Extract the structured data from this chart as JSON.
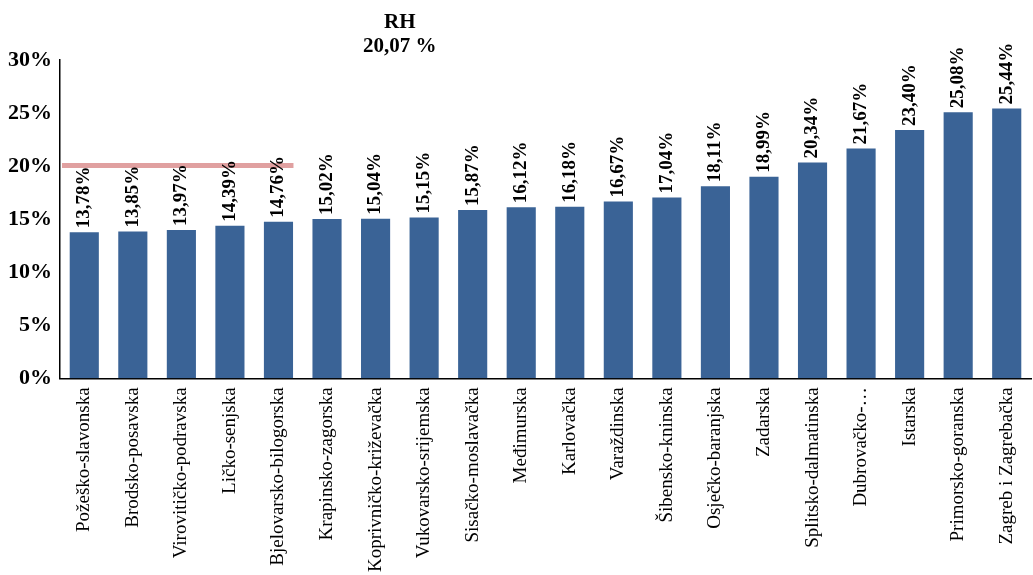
{
  "chart_data": {
    "type": "bar",
    "categories": [
      "Požeško-slavonska",
      "Brodsko-posavska",
      "Virovitičko-podravska",
      "Ličko-senjska",
      "Bjelovarsko-bilogorska",
      "Krapinsko-zagorska",
      "Koprivničko-križevačka",
      "Vukovarsko-srijemska",
      "Sisačko-moslavačka",
      "Međimurska",
      "Karlovačka",
      "Varaždinska",
      "Šibensko-kninska",
      "Osječko-baranjska",
      "Zadarska",
      "Splitsko-dalmatinska",
      "Dubrovačko-…",
      "Istarska",
      "Primorsko-goranska",
      "Zagreb i Zagrebačka"
    ],
    "values": [
      13.78,
      13.85,
      13.97,
      14.39,
      14.76,
      15.02,
      15.04,
      15.15,
      15.87,
      16.12,
      16.18,
      16.67,
      17.04,
      18.11,
      18.99,
      20.34,
      21.67,
      23.4,
      25.08,
      25.44
    ],
    "value_labels": [
      "13,78%",
      "13,85%",
      "13,97%",
      "14,39%",
      "14,76%",
      "15,02%",
      "15,04%",
      "15,15%",
      "15,87%",
      "16,12%",
      "16,18%",
      "16,67%",
      "17,04%",
      "18,11%",
      "18,99%",
      "20,34%",
      "21,67%",
      "23,40%",
      "25,08%",
      "25,44%"
    ],
    "color": "#3a6396",
    "ylim": [
      0,
      30
    ],
    "yticks": [
      {
        "value": 0,
        "label": "0%"
      },
      {
        "value": 5,
        "label": "5%"
      },
      {
        "value": 10,
        "label": "10%"
      },
      {
        "value": 15,
        "label": "15%"
      },
      {
        "value": 20,
        "label": "20%"
      },
      {
        "value": 25,
        "label": "25%"
      },
      {
        "value": 30,
        "label": "30%"
      }
    ],
    "grid": false,
    "legend": false,
    "title": "RH\n20,07 %",
    "ref_lines": [
      {
        "axis": "y",
        "value": 20.07,
        "color": "#e0a0a0"
      }
    ]
  }
}
